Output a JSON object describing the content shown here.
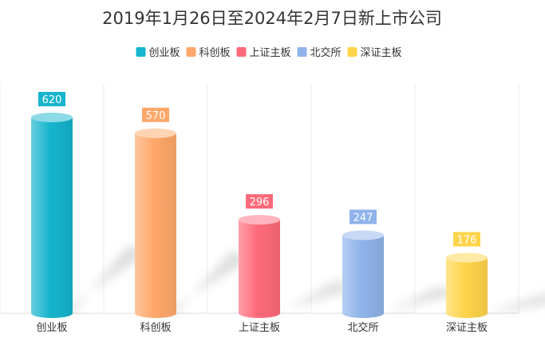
{
  "chart_data": {
    "type": "bar",
    "title": "2019年1月26日至2024年2月7日新上市公司",
    "categories": [
      "创业板",
      "科创板",
      "上证主板",
      "北交所",
      "深证主板"
    ],
    "values": [
      620,
      570,
      296,
      247,
      176
    ],
    "data_labels": [
      "620",
      "570",
      "296",
      "247",
      "176"
    ],
    "legend": [
      "创业板",
      "科创板",
      "上证主板",
      "北交所",
      "深证主板"
    ],
    "legend_placement": "top-center",
    "colors": [
      "#16b4cd",
      "#ffa86a",
      "#ff6b7a",
      "#8fb3ea",
      "#ffd44a"
    ],
    "ylim": [
      0,
      620
    ],
    "grid": "vertical-separators"
  }
}
